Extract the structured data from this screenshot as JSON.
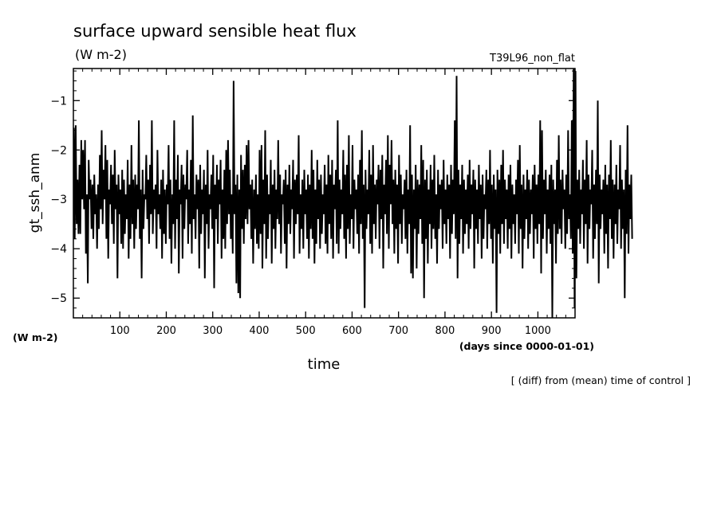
{
  "chart_data": {
    "type": "line",
    "title": "surface upward sensible heat flux",
    "title_units": "(W m-2)",
    "run_label": "T39L96_non_flat",
    "ylabel": "gt_ssh_anm",
    "y_units": "(W m-2)",
    "xlabel": "time",
    "x_units": "(days since 0000-01-01)",
    "note": "[ (diff) from (mean) time of control ]",
    "xlim": [
      0,
      1080
    ],
    "ylim": [
      -5.4,
      -0.35
    ],
    "x_ticks": [
      100,
      200,
      300,
      400,
      500,
      600,
      700,
      800,
      900,
      1000
    ],
    "y_ticks": [
      -5,
      -4,
      -3,
      -2,
      -1
    ],
    "x_tick_labels": [
      "100",
      "200",
      "300",
      "400",
      "500",
      "600",
      "700",
      "800",
      "900",
      "1000"
    ],
    "y_tick_labels": [
      "−5",
      "−4",
      "−3",
      "−2",
      "−1"
    ],
    "grid": false,
    "series": [
      {
        "x_start": 1,
        "x_step": 2,
        "values": [
          -1.55,
          -3.8,
          -1.5,
          -3.5,
          -2.6,
          -3.7,
          -2.3,
          -3.7,
          -1.8,
          -3.0,
          -2.0,
          -3.2,
          -1.8,
          -4.1,
          -2.9,
          -4.7,
          -2.2,
          -3.0,
          -2.6,
          -3.6,
          -2.7,
          -3.8,
          -2.5,
          -3.3,
          -2.9,
          -4.0,
          -2.7,
          -3.6,
          -2.1,
          -3.2,
          -1.6,
          -3.5,
          -2.4,
          -3.0,
          -1.9,
          -3.8,
          -2.2,
          -4.2,
          -2.8,
          -3.1,
          -2.3,
          -3.5,
          -2.5,
          -3.9,
          -2.0,
          -3.2,
          -2.7,
          -4.6,
          -2.5,
          -3.3,
          -2.8,
          -3.9,
          -2.4,
          -4.0,
          -2.6,
          -3.7,
          -2.9,
          -3.4,
          -2.2,
          -4.2,
          -2.7,
          -3.8,
          -1.9,
          -3.5,
          -2.6,
          -4.0,
          -2.5,
          -3.6,
          -2.7,
          -3.2,
          -1.4,
          -3.8,
          -2.8,
          -4.6,
          -2.4,
          -3.6,
          -2.9,
          -3.0,
          -2.1,
          -3.4,
          -2.6,
          -3.9,
          -2.3,
          -3.3,
          -1.4,
          -3.7,
          -2.8,
          -3.2,
          -2.7,
          -4.0,
          -2.0,
          -3.3,
          -2.9,
          -3.6,
          -2.6,
          -4.2,
          -2.4,
          -3.7,
          -2.8,
          -3.9,
          -2.7,
          -3.1,
          -1.9,
          -3.8,
          -2.6,
          -4.3,
          -2.9,
          -3.5,
          -1.4,
          -4.0,
          -2.6,
          -3.4,
          -2.1,
          -4.5,
          -2.8,
          -3.1,
          -2.3,
          -4.2,
          -2.5,
          -3.6,
          -2.7,
          -3.0,
          -2.0,
          -3.9,
          -2.8,
          -3.5,
          -2.2,
          -4.1,
          -1.3,
          -3.4,
          -2.9,
          -3.8,
          -2.5,
          -3.2,
          -2.6,
          -4.4,
          -2.3,
          -3.7,
          -2.8,
          -3.3,
          -2.4,
          -4.6,
          -2.7,
          -3.5,
          -2.0,
          -4.0,
          -2.9,
          -3.2,
          -2.5,
          -3.6,
          -2.1,
          -4.8,
          -2.7,
          -3.4,
          -2.3,
          -3.9,
          -2.6,
          -3.1,
          -2.2,
          -4.2,
          -2.8,
          -3.8,
          -2.4,
          -4.0,
          -2.0,
          -3.5,
          -1.8,
          -3.3,
          -2.4,
          -3.8,
          -2.9,
          -4.1,
          -0.6,
          -3.3,
          -2.7,
          -4.7,
          -2.5,
          -4.9,
          -2.8,
          -5.0,
          -2.1,
          -3.6,
          -2.4,
          -3.9,
          -2.3,
          -3.4,
          -1.9,
          -3.5,
          -1.8,
          -3.2,
          -2.7,
          -3.8,
          -2.6,
          -4.3,
          -2.8,
          -3.6,
          -2.5,
          -3.9,
          -2.9,
          -4.0,
          -2.0,
          -3.7,
          -1.9,
          -4.4,
          -2.6,
          -3.5,
          -1.6,
          -4.2,
          -2.5,
          -3.8,
          -2.9,
          -3.3,
          -2.2,
          -4.3,
          -2.7,
          -3.6,
          -2.4,
          -4.0,
          -2.8,
          -3.4,
          -1.8,
          -3.5,
          -2.5,
          -4.1,
          -2.9,
          -3.1,
          -2.6,
          -3.9,
          -2.4,
          -4.4,
          -2.7,
          -3.5,
          -2.3,
          -3.7,
          -2.8,
          -3.2,
          -2.2,
          -4.2,
          -2.6,
          -3.5,
          -2.5,
          -3.3,
          -1.7,
          -4.1,
          -2.9,
          -3.6,
          -2.6,
          -4.0,
          -2.4,
          -3.3,
          -2.8,
          -3.8,
          -2.5,
          -4.2,
          -2.7,
          -3.6,
          -2.0,
          -3.8,
          -2.4,
          -4.3,
          -2.8,
          -3.9,
          -2.2,
          -3.4,
          -2.6,
          -4.0,
          -2.5,
          -3.7,
          -2.9,
          -3.3,
          -2.3,
          -3.9,
          -2.7,
          -4.1,
          -2.1,
          -3.5,
          -2.5,
          -3.8,
          -2.2,
          -4.2,
          -2.7,
          -3.2,
          -2.4,
          -3.9,
          -1.4,
          -4.1,
          -2.6,
          -3.6,
          -2.8,
          -3.3,
          -2.0,
          -3.8,
          -2.5,
          -4.2,
          -2.3,
          -3.6,
          -1.7,
          -3.9,
          -2.9,
          -3.4,
          -1.9,
          -4.0,
          -2.6,
          -3.2,
          -2.8,
          -3.7,
          -2.5,
          -4.1,
          -2.2,
          -3.5,
          -1.6,
          -3.8,
          -2.7,
          -5.2,
          -2.4,
          -3.6,
          -2.8,
          -3.3,
          -2.0,
          -3.9,
          -2.5,
          -4.1,
          -1.9,
          -3.5,
          -2.7,
          -3.8,
          -2.6,
          -3.1,
          -2.3,
          -4.0,
          -2.4,
          -3.4,
          -2.1,
          -4.4,
          -2.7,
          -3.3,
          -2.2,
          -3.7,
          -1.7,
          -4.0,
          -2.3,
          -3.1,
          -1.8,
          -3.5,
          -2.6,
          -4.1,
          -2.4,
          -3.6,
          -2.7,
          -4.3,
          -2.1,
          -3.5,
          -2.5,
          -3.9,
          -2.9,
          -3.2,
          -2.6,
          -3.8,
          -2.4,
          -4.1,
          -2.8,
          -3.5,
          -1.5,
          -4.5,
          -2.5,
          -4.6,
          -2.8,
          -3.6,
          -2.3,
          -4.4,
          -2.6,
          -3.7,
          -2.7,
          -3.4,
          -1.9,
          -3.9,
          -2.2,
          -5.0,
          -2.6,
          -3.8,
          -2.4,
          -4.3,
          -2.8,
          -3.5,
          -2.3,
          -4.0,
          -2.6,
          -3.6,
          -2.1,
          -3.8,
          -2.9,
          -4.3,
          -2.4,
          -3.6,
          -2.7,
          -3.2,
          -2.6,
          -4.0,
          -2.2,
          -3.5,
          -2.8,
          -3.9,
          -2.5,
          -3.4,
          -2.7,
          -4.2,
          -2.3,
          -3.7,
          -2.6,
          -3.3,
          -1.4,
          -3.8,
          -0.5,
          -4.6,
          -2.4,
          -3.9,
          -2.7,
          -3.4,
          -2.3,
          -4.1,
          -2.6,
          -3.7,
          -2.8,
          -3.5,
          -2.5,
          -4.0,
          -2.2,
          -3.6,
          -2.7,
          -3.3,
          -2.4,
          -4.4,
          -2.6,
          -3.6,
          -2.8,
          -3.9,
          -2.3,
          -3.4,
          -2.7,
          -4.2,
          -2.5,
          -3.8,
          -2.9,
          -3.2,
          -2.4,
          -4.0,
          -2.6,
          -3.5,
          -2.0,
          -3.8,
          -2.7,
          -4.3,
          -2.5,
          -3.6,
          -2.8,
          -5.3,
          -2.4,
          -3.7,
          -2.6,
          -4.1,
          -2.3,
          -3.5,
          -2.0,
          -3.9,
          -2.6,
          -3.4,
          -2.8,
          -4.0,
          -2.5,
          -3.6,
          -2.3,
          -4.2,
          -2.7,
          -3.5,
          -2.9,
          -3.9,
          -2.6,
          -3.3,
          -2.2,
          -4.1,
          -1.9,
          -3.6,
          -2.7,
          -4.4,
          -2.5,
          -3.8,
          -2.8,
          -3.4,
          -2.4,
          -4.0,
          -2.6,
          -3.7,
          -2.8,
          -3.3,
          -2.5,
          -4.2,
          -2.3,
          -3.6,
          -2.7,
          -3.9,
          -2.5,
          -3.5,
          -1.4,
          -4.5,
          -1.6,
          -3.8,
          -2.6,
          -3.3,
          -2.4,
          -4.1,
          -2.8,
          -3.6,
          -2.5,
          -3.9,
          -2.3,
          -5.4,
          -2.6,
          -3.5,
          -2.8,
          -4.3,
          -2.2,
          -3.7,
          -1.7,
          -3.6,
          -2.6,
          -3.9,
          -2.4,
          -3.2,
          -2.8,
          -4.0,
          -2.5,
          -3.7,
          -1.6,
          -3.4,
          -2.9,
          -3.8,
          -1.4,
          -4.1,
          -0.35,
          -5.2,
          -0.4,
          -4.6,
          -2.6,
          -3.6,
          -2.4,
          -3.9,
          -2.8,
          -3.3,
          -2.2,
          -4.0,
          -2.6,
          -3.5,
          -1.8,
          -4.3,
          -2.5,
          -3.6,
          -2.8,
          -3.1,
          -2.0,
          -4.2,
          -2.7,
          -3.8,
          -2.4,
          -3.5,
          -1.0,
          -4.7,
          -2.5,
          -3.6,
          -2.8,
          -3.3,
          -2.6,
          -4.1,
          -2.3,
          -3.7,
          -2.7,
          -4.4,
          -2.5,
          -3.4,
          -1.8,
          -3.8,
          -2.6,
          -4.2,
          -2.7,
          -3.5,
          -2.3,
          -3.9,
          -2.8,
          -3.2,
          -1.9,
          -4.0,
          -2.6,
          -3.6,
          -2.8,
          -5.0,
          -2.4,
          -3.7,
          -1.5,
          -4.1,
          -2.7,
          -3.4,
          -2.5,
          -3.8
        ]
      }
    ]
  }
}
